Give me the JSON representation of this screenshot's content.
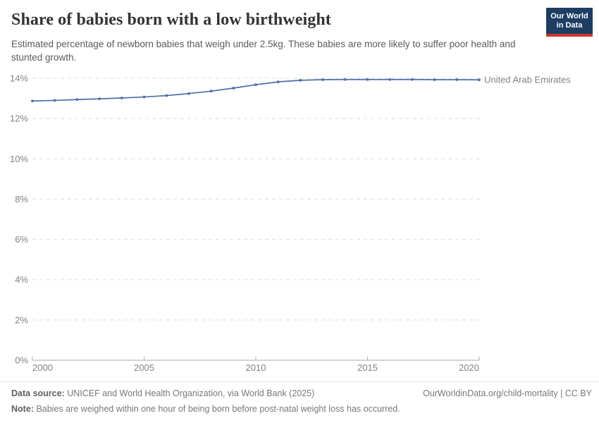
{
  "header": {
    "title": "Share of babies born with a low birthweight",
    "subtitle": "Estimated percentage of newborn babies that weigh under 2.5kg. These babies are more likely to suffer poor health and stunted growth.",
    "logo": {
      "line1": "Our World",
      "line2": "in Data"
    }
  },
  "colors": {
    "series_blue": "#4C6EA9",
    "logo_navy": "#1D3D63",
    "logo_red": "#D0342C",
    "grid_gray": "#DCDCDC",
    "axis_gray": "#A8A8A8",
    "tick_label_gray": "#828282",
    "title_dark": "#333333",
    "subtitle_gray": "#5B5B5B",
    "footer_gray": "#787878"
  },
  "chart_data": {
    "type": "line",
    "title": "Share of babies born with a low birthweight",
    "xlabel": "",
    "ylabel": "",
    "x": [
      2000,
      2001,
      2002,
      2003,
      2004,
      2005,
      2006,
      2007,
      2008,
      2009,
      2010,
      2011,
      2012,
      2013,
      2014,
      2015,
      2016,
      2017,
      2018,
      2019,
      2020
    ],
    "series": [
      {
        "name": "United Arab Emirates",
        "color": "#4C6EA9",
        "values": [
          12.87,
          12.9,
          12.94,
          12.98,
          13.02,
          13.07,
          13.14,
          13.24,
          13.36,
          13.51,
          13.68,
          13.82,
          13.9,
          13.93,
          13.94,
          13.94,
          13.94,
          13.94,
          13.93,
          13.93,
          13.92
        ]
      }
    ],
    "end_label": "United Arab Emirates",
    "x_ticks": [
      2000,
      2005,
      2010,
      2015,
      2020
    ],
    "x_tick_labels": [
      "2000",
      "2005",
      "2010",
      "2015",
      "2020"
    ],
    "y_ticks": [
      0,
      2,
      4,
      6,
      8,
      10,
      12,
      14
    ],
    "y_tick_labels": [
      "0%",
      "2%",
      "4%",
      "6%",
      "8%",
      "10%",
      "12%",
      "14%"
    ],
    "xlim": [
      2000,
      2020
    ],
    "ylim": [
      0,
      14
    ],
    "grid": "horizontal-dashed",
    "legend_position": "line-end"
  },
  "footer": {
    "data_source_label": "Data source:",
    "data_source_text": "UNICEF and World Health Organization, via World Bank (2025)",
    "attribution": "OurWorldinData.org/child-mortality | CC BY",
    "note_label": "Note:",
    "note_text": "Babies are weighed within one hour of being born before post-natal weight loss has occurred."
  }
}
